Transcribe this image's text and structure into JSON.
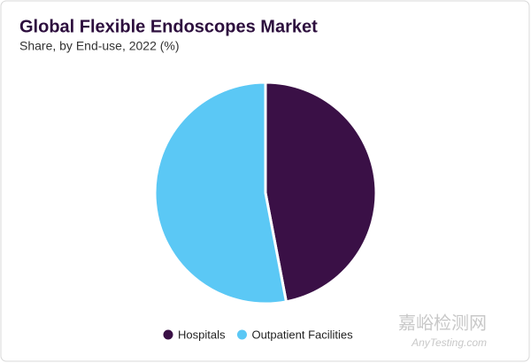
{
  "chart_data": {
    "type": "pie",
    "title": "Global Flexible Endoscopes Market",
    "subtitle": "Share, by End-use, 2022 (%)",
    "categories": [
      "Hospitals",
      "Outpatient Facilities"
    ],
    "values": [
      47,
      53
    ],
    "colors": [
      "#3a1046",
      "#5bc8f5"
    ],
    "legend": "bottom"
  },
  "watermark": {
    "cn": "嘉峪检测网",
    "en": "AnyTesting.com"
  }
}
